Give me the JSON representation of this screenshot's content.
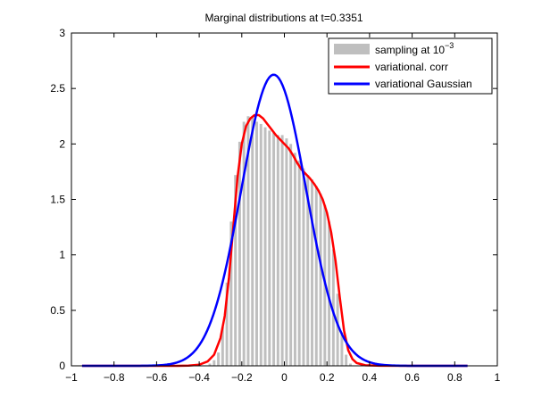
{
  "chart_data": {
    "type": "histogram",
    "title": "Marginal distributions at t=0.3351",
    "xlabel": "",
    "ylabel": "",
    "xlim": [
      -1,
      1
    ],
    "ylim": [
      0,
      3
    ],
    "xticks": [
      -1,
      -0.8,
      -0.6,
      -0.4,
      -0.2,
      0,
      0.2,
      0.4,
      0.6,
      0.8,
      1
    ],
    "xtick_labels": [
      "−1",
      "−0.8",
      "−0.6",
      "−0.4",
      "−0.2",
      "0",
      "0.2",
      "0.4",
      "0.6",
      "0.8",
      "1"
    ],
    "yticks": [
      0,
      0.5,
      1,
      1.5,
      2,
      2.5,
      3
    ],
    "ytick_labels": [
      "0",
      "0.5",
      "1",
      "1.5",
      "2",
      "2.5",
      "3"
    ],
    "grid": false,
    "legend_position": "top-right",
    "histogram": {
      "name": "sampling at 10",
      "name_superscript": "−3",
      "color": "#bfbfbf",
      "bin_width": 0.02,
      "bins_x": [
        -0.35,
        -0.33,
        -0.31,
        -0.29,
        -0.27,
        -0.25,
        -0.23,
        -0.21,
        -0.19,
        -0.17,
        -0.15,
        -0.13,
        -0.11,
        -0.09,
        -0.07,
        -0.05,
        -0.03,
        -0.01,
        0.01,
        0.03,
        0.05,
        0.07,
        0.09,
        0.11,
        0.13,
        0.15,
        0.17,
        0.19,
        0.21,
        0.23,
        0.25,
        0.27,
        0.29,
        0.31
      ],
      "bins_y": [
        0.02,
        0.05,
        0.12,
        0.35,
        0.75,
        1.3,
        1.72,
        2.02,
        2.2,
        2.25,
        2.24,
        2.2,
        2.18,
        2.15,
        2.12,
        2.1,
        2.08,
        2.08,
        2.05,
        2.0,
        1.92,
        1.85,
        1.78,
        1.72,
        1.68,
        1.62,
        1.55,
        1.45,
        1.3,
        1.05,
        0.65,
        0.3,
        0.1,
        0.02
      ]
    },
    "series": [
      {
        "name": "variational. corr",
        "color": "#ff0000",
        "x": [
          -0.95,
          -0.6,
          -0.5,
          -0.45,
          -0.4,
          -0.36,
          -0.33,
          -0.3,
          -0.28,
          -0.26,
          -0.24,
          -0.22,
          -0.2,
          -0.18,
          -0.16,
          -0.14,
          -0.12,
          -0.1,
          -0.08,
          -0.06,
          -0.04,
          -0.02,
          0,
          0.02,
          0.04,
          0.06,
          0.08,
          0.1,
          0.12,
          0.14,
          0.16,
          0.18,
          0.2,
          0.22,
          0.24,
          0.26,
          0.28,
          0.3,
          0.32,
          0.34,
          0.38,
          0.45,
          0.6,
          0.86
        ],
        "y": [
          0,
          0,
          0,
          0.002,
          0.01,
          0.04,
          0.1,
          0.25,
          0.45,
          0.8,
          1.25,
          1.7,
          2.0,
          2.16,
          2.23,
          2.26,
          2.26,
          2.23,
          2.18,
          2.13,
          2.08,
          2.04,
          2.0,
          1.96,
          1.9,
          1.83,
          1.77,
          1.73,
          1.69,
          1.64,
          1.58,
          1.5,
          1.38,
          1.2,
          0.95,
          0.62,
          0.32,
          0.14,
          0.06,
          0.025,
          0.005,
          0.001,
          0,
          0
        ]
      },
      {
        "name": "variational Gaussian",
        "color": "#0000ff"
      }
    ],
    "gaussian_params": {
      "mean": -0.05,
      "std": 0.152,
      "x_start": -0.95,
      "x_end": 0.86
    }
  }
}
